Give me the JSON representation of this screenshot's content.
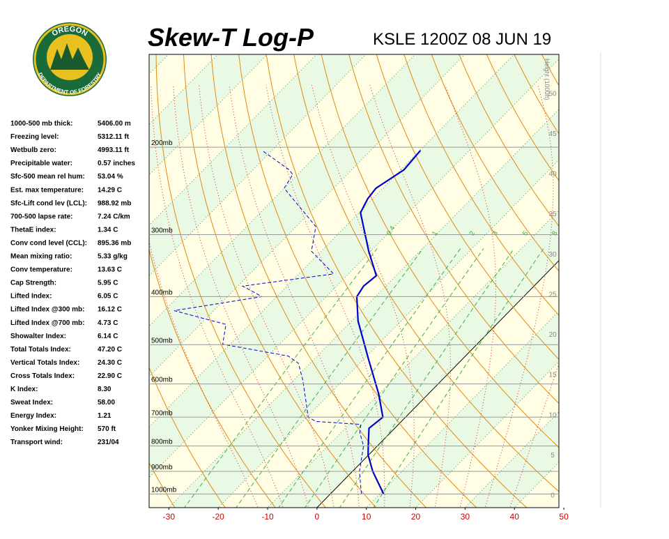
{
  "header": {
    "title": "Skew-T Log-P",
    "station": "KSLE 1200Z 08 JUN 19"
  },
  "logo": {
    "top": "OREGON",
    "bottom": "DEPARTMENT OF FORESTRY"
  },
  "indices": [
    [
      "1000-500 mb thick:",
      "5406.00 m"
    ],
    [
      "Freezing level:",
      "5312.11 ft"
    ],
    [
      "Wetbulb zero:",
      "4993.11 ft"
    ],
    [
      "Precipitable water:",
      "0.57 inches"
    ],
    [
      "Sfc-500 mean rel hum:",
      "53.04 %"
    ],
    [
      "Est. max temperature:",
      "14.29 C"
    ],
    [
      "Sfc-Lift cond lev (LCL):",
      "988.92 mb"
    ],
    [
      "700-500 lapse rate:",
      "7.24 C/km"
    ],
    [
      "ThetaE index:",
      "1.34 C"
    ],
    [
      "Conv cond level (CCL):",
      "895.36 mb"
    ],
    [
      "  Mean mixing ratio:",
      "5.33 g/kg"
    ],
    [
      "  Conv temperature:",
      "13.63 C"
    ],
    [
      "Cap Strength:",
      "5.95 C"
    ],
    [
      "Lifted Index:",
      "6.05 C"
    ],
    [
      "Lifted Index @300 mb:",
      "16.12 C"
    ],
    [
      "Lifted Index @700 mb:",
      "4.73 C"
    ],
    [
      "Showalter Index:",
      "6.14 C"
    ],
    [
      "Total Totals Index:",
      "47.20 C"
    ],
    [
      "  Vertical Totals Index:",
      "24.30 C"
    ],
    [
      "  Cross Totals Index:",
      "22.90 C"
    ],
    [
      "K Index:",
      "8.30"
    ],
    [
      "Sweat Index:",
      "58.00"
    ],
    [
      "Energy Index:",
      "1.21"
    ],
    [
      "Yonker Mixing Height:",
      "570 ft"
    ],
    [
      "Transport wind:",
      "231/04"
    ]
  ],
  "chart_data": {
    "type": "skewt",
    "xlim": [
      -34,
      49
    ],
    "xticks": [
      -30,
      -20,
      -10,
      0,
      10,
      20,
      30,
      40,
      50
    ],
    "ylim": [
      1065,
      130
    ],
    "log_y": true,
    "yticks": [
      {
        "value": 1000,
        "label": "1000mb"
      },
      {
        "value": 900,
        "label": "900mb"
      },
      {
        "value": 800,
        "label": "800mb"
      },
      {
        "value": 700,
        "label": "700mb"
      },
      {
        "value": 600,
        "label": "600mb"
      },
      {
        "value": 500,
        "label": "500mb"
      },
      {
        "value": 400,
        "label": "400mb"
      },
      {
        "value": 300,
        "label": "300mb"
      },
      {
        "value": 200,
        "label": "200mb"
      }
    ],
    "grid": true,
    "height_label": "Height (1000ft)",
    "height_lim": [
      -1.6,
      54.8
    ],
    "height_ticks": [
      0,
      5,
      10,
      15,
      20,
      25,
      30,
      35,
      40,
      45,
      50
    ],
    "mixing_ratios": [
      0.4,
      1,
      2,
      3,
      5,
      8
    ],
    "series": [
      {
        "color": "#0000cc",
        "style": "solid",
        "pressure": [
          1000,
          900,
          834,
          795,
          737,
          700,
          629,
          535,
          448,
          400,
          381,
          363,
          324,
          271,
          254,
          242,
          222,
          203
        ],
        "values": [
          10.8,
          4.1,
          -0.1,
          -2.1,
          -5.2,
          -4.6,
          -10,
          -19,
          -28.7,
          -33.8,
          -34.5,
          -34,
          -40.4,
          -49.7,
          -51,
          -51.4,
          -49.4,
          -49.9
        ]
      },
      {
        "color": "#0000cc",
        "style": "dashed",
        "pressure": [
          1000,
          900,
          800,
          752,
          724,
          714,
          700,
          589,
          545,
          527,
          499,
          455,
          427,
          400,
          381,
          360,
          324,
          289,
          242,
          227,
          222,
          203
        ],
        "values": [
          6.3,
          1.4,
          -2.8,
          -6.2,
          -7.6,
          -17.3,
          -19.7,
          -28.2,
          -32.4,
          -35.9,
          -51.5,
          -54.8,
          -68,
          -53,
          -59,
          -43,
          -52,
          -56,
          -70,
          -71,
          -72.7,
          -82
        ]
      }
    ]
  }
}
